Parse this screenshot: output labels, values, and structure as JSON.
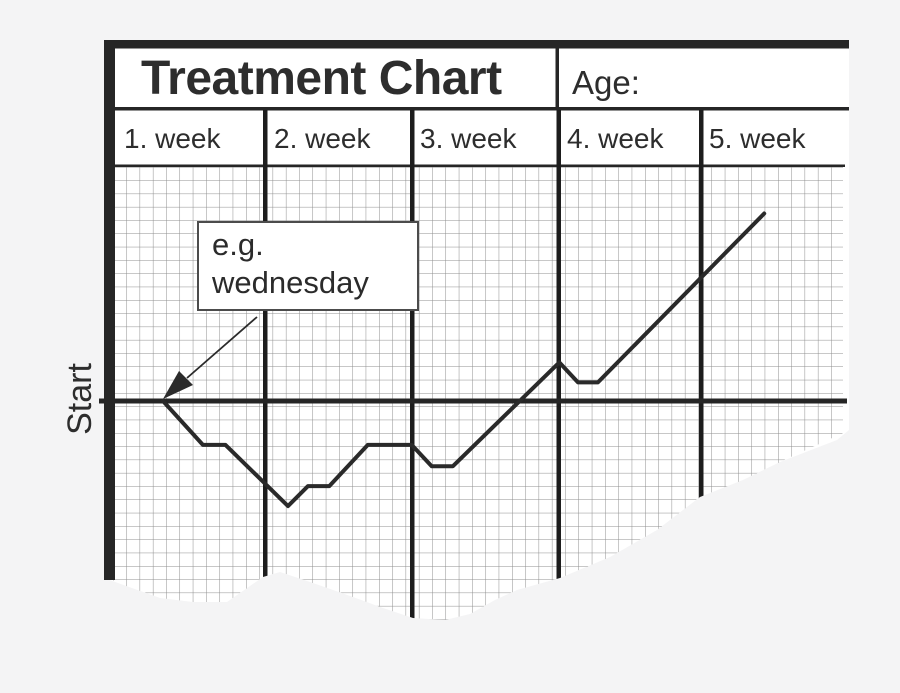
{
  "header": {
    "title": "Treatment Chart",
    "age_label": "Age:"
  },
  "weeks": [
    "1. week",
    "2. week",
    "3. week",
    "4. week",
    "5. week"
  ],
  "start_axis_label": "Start",
  "annotation": {
    "line1": "e.g.",
    "line2": "wednesday"
  },
  "colors": {
    "background": "#f4f4f5",
    "paper": "#ffffff",
    "ink": "#262626",
    "grid_line": "#8e8e8e",
    "text": "#2d2d2d"
  },
  "chart_data": {
    "type": "line",
    "title": "Treatment Chart",
    "x_categories": [
      "1. week",
      "2. week",
      "3. week",
      "4. week",
      "5. week"
    ],
    "y_baseline_label": "Start",
    "units": "graph-paper cells; x measured right from the Start point, y relative to the Start baseline (positive = above baseline)",
    "points": [
      [
        0,
        0
      ],
      [
        3.0,
        -3.3
      ],
      [
        4.7,
        -3.3
      ],
      [
        9.4,
        -7.9
      ],
      [
        10.9,
        -6.4
      ],
      [
        12.5,
        -6.4
      ],
      [
        15.4,
        -3.3
      ],
      [
        18.7,
        -3.3
      ],
      [
        20.2,
        -4.9
      ],
      [
        21.8,
        -4.9
      ],
      [
        29.8,
        2.9
      ],
      [
        31.2,
        1.4
      ],
      [
        32.7,
        1.4
      ],
      [
        45.2,
        14.1
      ]
    ],
    "annotation": {
      "text": "e.g. wednesday",
      "target": "start point of the line on the Start baseline"
    },
    "grid": true,
    "legend": false,
    "notes": "Torn graph-paper treatment chart; line dips below Start during weeks 1-3, recovers and rises through weeks 4-5."
  }
}
